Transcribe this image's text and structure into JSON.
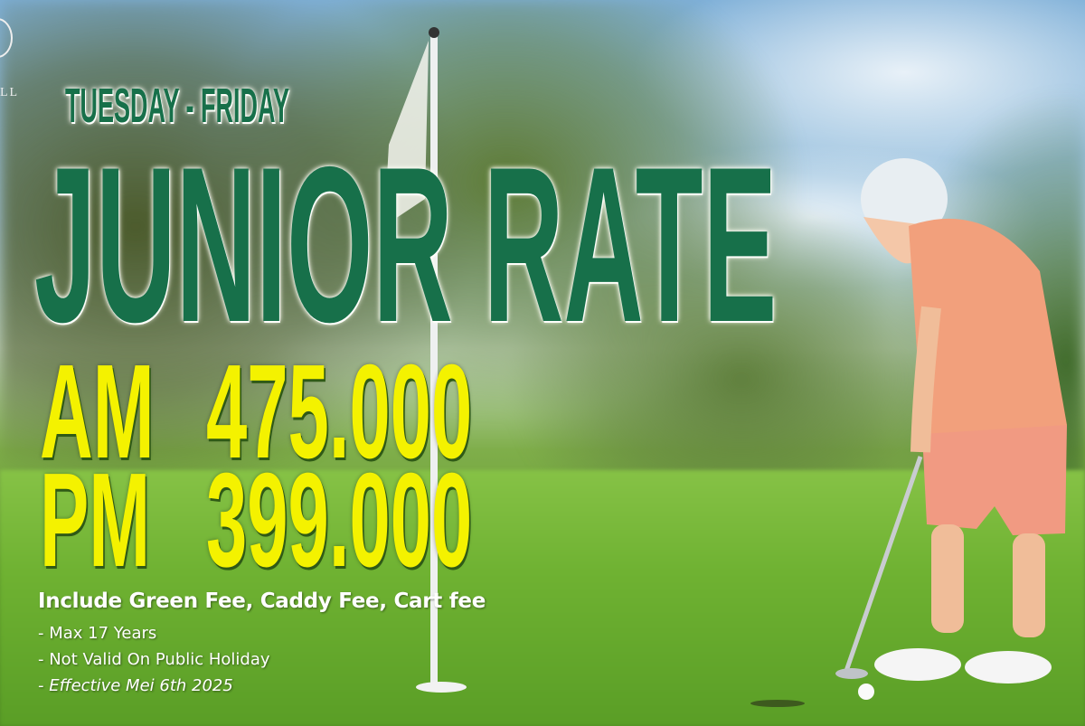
{
  "logo": {
    "text": "LL"
  },
  "headline": {
    "days": "TUESDAY - FRIDAY",
    "title": "JUNIOR RATE"
  },
  "rates": [
    {
      "period": "AM",
      "price": "475.000"
    },
    {
      "period": "PM",
      "price": "399.000"
    }
  ],
  "includes": "Include Green Fee, Caddy Fee, Cart fee",
  "terms": [
    "- Max 17 Years",
    "- Not Valid On Public Holiday",
    "- Effective Mei 6th 2025"
  ],
  "colors": {
    "title_green": "#17704a",
    "price_yellow": "#f4f200"
  }
}
